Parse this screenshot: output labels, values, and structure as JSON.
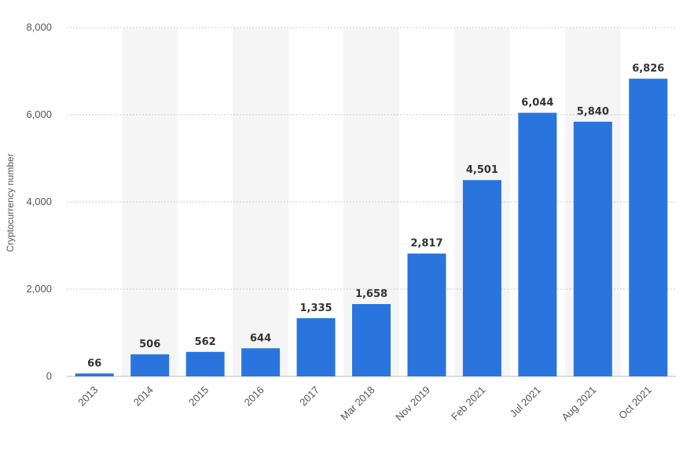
{
  "chart_data": {
    "type": "bar",
    "categories": [
      "2013",
      "2014",
      "2015",
      "2016",
      "2017",
      "Mar 2018",
      "Nov 2019",
      "Feb 2021",
      "Jul 2021",
      "Aug 2021",
      "Oct 2021"
    ],
    "values": [
      66,
      506,
      562,
      644,
      1335,
      1658,
      2817,
      4501,
      6044,
      5840,
      6826
    ],
    "value_labels": [
      "66",
      "506",
      "562",
      "644",
      "1,335",
      "1,658",
      "2,817",
      "4,501",
      "6,044",
      "5,840",
      "6,826"
    ],
    "ylabel": "Cryptocurrency number",
    "ylim": [
      0,
      8000
    ],
    "yticks": [
      0,
      2000,
      4000,
      6000,
      8000
    ],
    "ytick_labels": [
      "0",
      "2,000",
      "4,000",
      "6,000",
      "8,000"
    ],
    "grid": true,
    "bar_color": "#2a75dd",
    "band_color": "#f5f5f5"
  }
}
